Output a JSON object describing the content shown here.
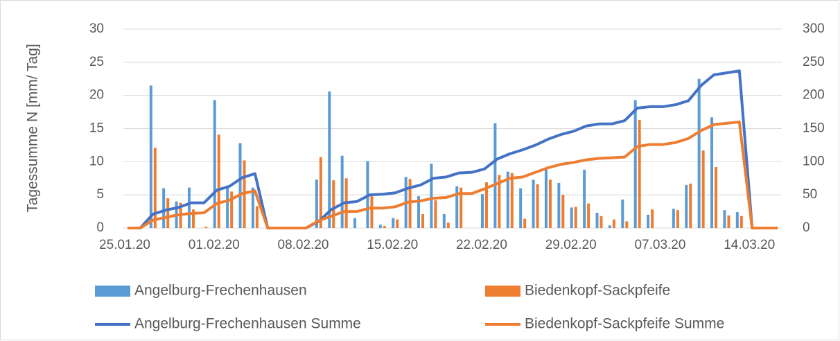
{
  "chart_data": {
    "type": "bar",
    "ylabel": "Tagessumme N [mm/ Tag]",
    "categories": [
      "25.01.20",
      null,
      null,
      null,
      null,
      null,
      null,
      "01.02.20",
      null,
      null,
      null,
      null,
      null,
      null,
      "08.02.20",
      null,
      null,
      null,
      null,
      null,
      null,
      "15.02.20",
      null,
      null,
      null,
      null,
      null,
      null,
      "22.02.20",
      null,
      null,
      null,
      null,
      null,
      null,
      "29.02.20",
      null,
      null,
      null,
      null,
      null,
      null,
      "07.03.20",
      null,
      null,
      null,
      null,
      null,
      null,
      "14.03.20",
      null,
      null
    ],
    "series": [
      {
        "name": "Angelburg-Frechenhausen",
        "type": "bar",
        "color": "#5b9bd5",
        "values": [
          0,
          0,
          21.5,
          6,
          4,
          6.1,
          0,
          19.3,
          6.3,
          12.8,
          6.1,
          0,
          0,
          0,
          0,
          7.3,
          20.6,
          10.9,
          1.5,
          10.1,
          0.5,
          1.5,
          7.7,
          4.8,
          9.7,
          2.1,
          6.3,
          0,
          5.1,
          15.8,
          8.5,
          6,
          7.3,
          8.8,
          6.8,
          3.1,
          8.8,
          2.3,
          0.4,
          4.3,
          19.3,
          2,
          0,
          2.9,
          6.5,
          22.5,
          16.7,
          2.7,
          2.4,
          0,
          0,
          0
        ]
      },
      {
        "name": "Biedenkopf-Sackpfeife",
        "type": "bar",
        "color": "#ed7d31",
        "values": [
          0,
          0,
          12.1,
          4.5,
          3.8,
          2.8,
          0.2,
          14.1,
          5.5,
          10.2,
          3.3,
          0,
          0,
          0,
          0,
          10.7,
          7.2,
          7.5,
          0,
          4.8,
          0.3,
          1.3,
          7.4,
          2.1,
          4.2,
          0.8,
          6.1,
          0,
          6.9,
          8,
          8.3,
          1.4,
          6.6,
          7.3,
          5,
          3.2,
          3.7,
          1.8,
          1.3,
          1,
          16.3,
          2.8,
          0,
          2.7,
          6.7,
          11.7,
          9.2,
          1.9,
          1.8,
          0,
          0,
          0
        ]
      },
      {
        "name": "Angelburg-Frechenhausen  Summe",
        "type": "line",
        "axis": "y2",
        "color": "#4472c4",
        "values": [
          0,
          0,
          21,
          27,
          31,
          38,
          38,
          57,
          63,
          76,
          82,
          0,
          0,
          0,
          0,
          10,
          28,
          38,
          40,
          50,
          51,
          53,
          60,
          65,
          75,
          77,
          83,
          84,
          89,
          104,
          112,
          118,
          125,
          134,
          141,
          146,
          154,
          157,
          157,
          162,
          181,
          183,
          183,
          186,
          192,
          215,
          231,
          234,
          237,
          0,
          0,
          0
        ]
      },
      {
        "name": "Biedenkopf-Sackpfeife Summe",
        "type": "line",
        "axis": "y2",
        "color": "#ed7d31",
        "values": [
          0,
          0,
          12,
          16,
          20,
          22,
          23,
          37,
          42,
          52,
          56,
          0,
          0,
          0,
          0,
          11,
          18,
          25,
          25,
          30,
          30,
          32,
          39,
          41,
          45,
          46,
          52,
          52,
          59,
          67,
          75,
          77,
          84,
          91,
          96,
          99,
          103,
          105,
          106,
          107,
          123,
          126,
          126,
          129,
          135,
          147,
          156,
          158,
          160,
          0,
          0,
          0
        ]
      }
    ],
    "ylim": [
      0,
      30
    ],
    "yticks": [
      0,
      5,
      10,
      15,
      20,
      25,
      30
    ],
    "y2lim": [
      0,
      300
    ],
    "y2ticks": [
      0,
      50,
      100,
      150,
      200,
      250,
      300
    ],
    "grid": true,
    "legend": "bottom"
  }
}
